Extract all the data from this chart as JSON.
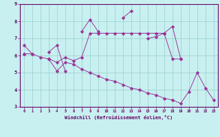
{
  "x": [
    0,
    1,
    2,
    3,
    4,
    5,
    6,
    7,
    8,
    9,
    10,
    11,
    12,
    13,
    14,
    15,
    16,
    17,
    18,
    19,
    20,
    21,
    22,
    23
  ],
  "line1": [
    6.6,
    6.1,
    null,
    6.2,
    6.6,
    5.1,
    null,
    7.4,
    8.1,
    7.4,
    null,
    null,
    8.2,
    8.6,
    null,
    7.0,
    7.1,
    7.3,
    7.7,
    5.8,
    null,
    null,
    null,
    null
  ],
  "line2": [
    6.1,
    6.1,
    5.9,
    5.8,
    5.6,
    5.9,
    5.7,
    5.9,
    7.3,
    7.3,
    7.3,
    7.3,
    7.3,
    7.3,
    7.3,
    7.3,
    7.3,
    7.3,
    5.8,
    5.8,
    null,
    null,
    null,
    null
  ],
  "line3": [
    6.1,
    null,
    null,
    5.8,
    5.1,
    5.6,
    5.5,
    5.2,
    5.0,
    4.8,
    4.6,
    4.5,
    4.3,
    4.1,
    4.0,
    3.8,
    3.7,
    3.5,
    3.4,
    3.2,
    3.9,
    5.0,
    4.1,
    3.4
  ],
  "bg_color": "#c8f0f0",
  "line_color": "#993399",
  "grid_color": "#99cccc",
  "xlabel": "Windchill (Refroidissement éolien,°C)",
  "ylim": [
    3,
    9
  ],
  "xlim": [
    -0.5,
    23.5
  ],
  "yticks": [
    3,
    4,
    5,
    6,
    7,
    8,
    9
  ],
  "xticks": [
    0,
    1,
    2,
    3,
    4,
    5,
    6,
    7,
    8,
    9,
    10,
    11,
    12,
    13,
    14,
    15,
    16,
    17,
    18,
    19,
    20,
    21,
    22,
    23
  ],
  "font_color": "#660066",
  "markersize": 2.5
}
